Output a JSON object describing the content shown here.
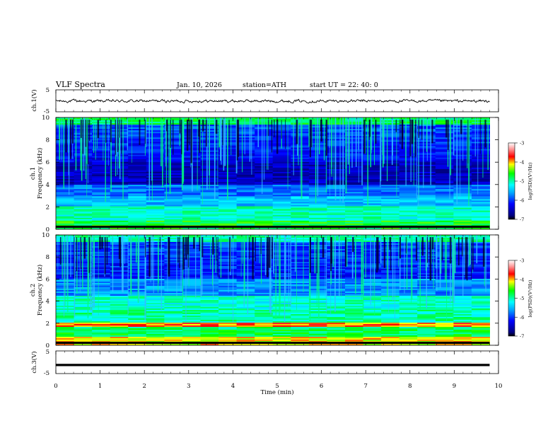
{
  "header": {
    "title": "VLF  Spectra",
    "date": "Jan. 10, 2026",
    "station": "station=ATH",
    "start_ut": "start  UT  =   22: 40: 0"
  },
  "chart_data": [
    {
      "type": "line",
      "ylabel": "ch.1(V)",
      "ylim": [
        -5,
        5
      ],
      "yticks": [
        "5",
        "-5"
      ],
      "xlim": [
        0,
        10
      ],
      "description_values": "noisy waveform around 0 V, amplitude roughly ±1 V",
      "color": "#000000"
    },
    {
      "type": "heatmap",
      "ylabel": "ch.1\nFrequency  (kHz)",
      "ylabel_line1": "ch.1",
      "ylabel_line2": "Frequency  (kHz)",
      "ylim": [
        0,
        10
      ],
      "yticks": [
        "0",
        "2",
        "4",
        "6",
        "8",
        "10"
      ],
      "xlim": [
        0,
        10
      ],
      "colorbar": {
        "label": "log(PSD)(V²/Hz)",
        "range": [
          -7,
          -3
        ],
        "ticks": [
          "-7",
          "-6",
          "-5",
          "-4",
          "-3"
        ]
      }
    },
    {
      "type": "heatmap",
      "ylabel": "ch.2\nFrequency  (kHz)",
      "ylabel_line1": "ch.2",
      "ylabel_line2": "Frequency  (kHz)",
      "ylim": [
        0,
        10
      ],
      "yticks": [
        "0",
        "2",
        "4",
        "6",
        "8",
        "10"
      ],
      "xlim": [
        0,
        10
      ],
      "colorbar": {
        "label": "log(PSD)(V²/Hz)",
        "range": [
          -7,
          -3
        ],
        "ticks": [
          "-7",
          "-6",
          "-5",
          "-4",
          "-3"
        ]
      }
    },
    {
      "type": "line",
      "ylabel": "ch.3(V)",
      "ylim": [
        -5,
        5
      ],
      "yticks": [
        "5",
        "-5"
      ],
      "xlim": [
        0,
        10
      ],
      "values": {
        "x": [
          0,
          9.8
        ],
        "y": [
          -1.2,
          -1.2
        ]
      },
      "color": "#000000"
    }
  ],
  "xaxis": {
    "label": "Time  (min)",
    "ticks": [
      "0",
      "1",
      "2",
      "3",
      "4",
      "5",
      "6",
      "7",
      "8",
      "9",
      "10"
    ],
    "range": [
      0,
      10
    ]
  }
}
